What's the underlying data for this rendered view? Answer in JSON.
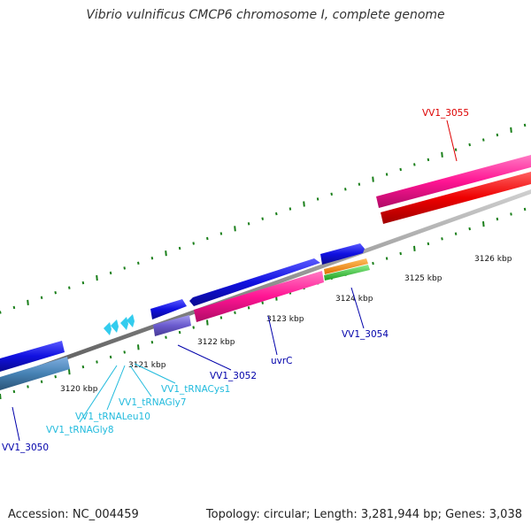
{
  "title": "Vibrio vulnificus CMCP6 chromosome I, complete genome",
  "footer": {
    "accession": "Accession: NC_004459",
    "summary": "Topology: circular; Length: 3,281,944 bp; Genes: 3,038"
  },
  "colors": {
    "backbone": "#8c8c8c",
    "tick": "#1a7f1a",
    "gene_blue": "#1515e8",
    "gene_steelblue": "#4682b4",
    "gene_slate": "#6a5acd",
    "gene_pink": "#ff1493",
    "gene_red": "#ee0000",
    "gene_orange": "#ff8c00",
    "gene_green": "#32cd32",
    "trna_cyan": "#33ccee",
    "label_blue": "#0000aa",
    "label_cyan": "#22bbdd",
    "label_red": "#dd0000"
  },
  "scale_labels": [
    "3120 kbp",
    "3121 kbp",
    "3122 kbp",
    "3123 kbp",
    "3124 kbp",
    "3125 kbp",
    "3126 kbp"
  ],
  "gene_labels": [
    {
      "id": "VV1_3055",
      "color": "label_red"
    },
    {
      "id": "VV1_3054",
      "color": "label_blue"
    },
    {
      "id": "uvrC",
      "color": "label_blue"
    },
    {
      "id": "VV1_3052",
      "color": "label_blue"
    },
    {
      "id": "VV1_tRNACys1",
      "color": "label_cyan"
    },
    {
      "id": "VV1_tRNAGly7",
      "color": "label_cyan"
    },
    {
      "id": "VV1_tRNALeu10",
      "color": "label_cyan"
    },
    {
      "id": "VV1_tRNAGly8",
      "color": "label_cyan"
    },
    {
      "id": "VV1_3050",
      "color": "label_blue"
    }
  ]
}
